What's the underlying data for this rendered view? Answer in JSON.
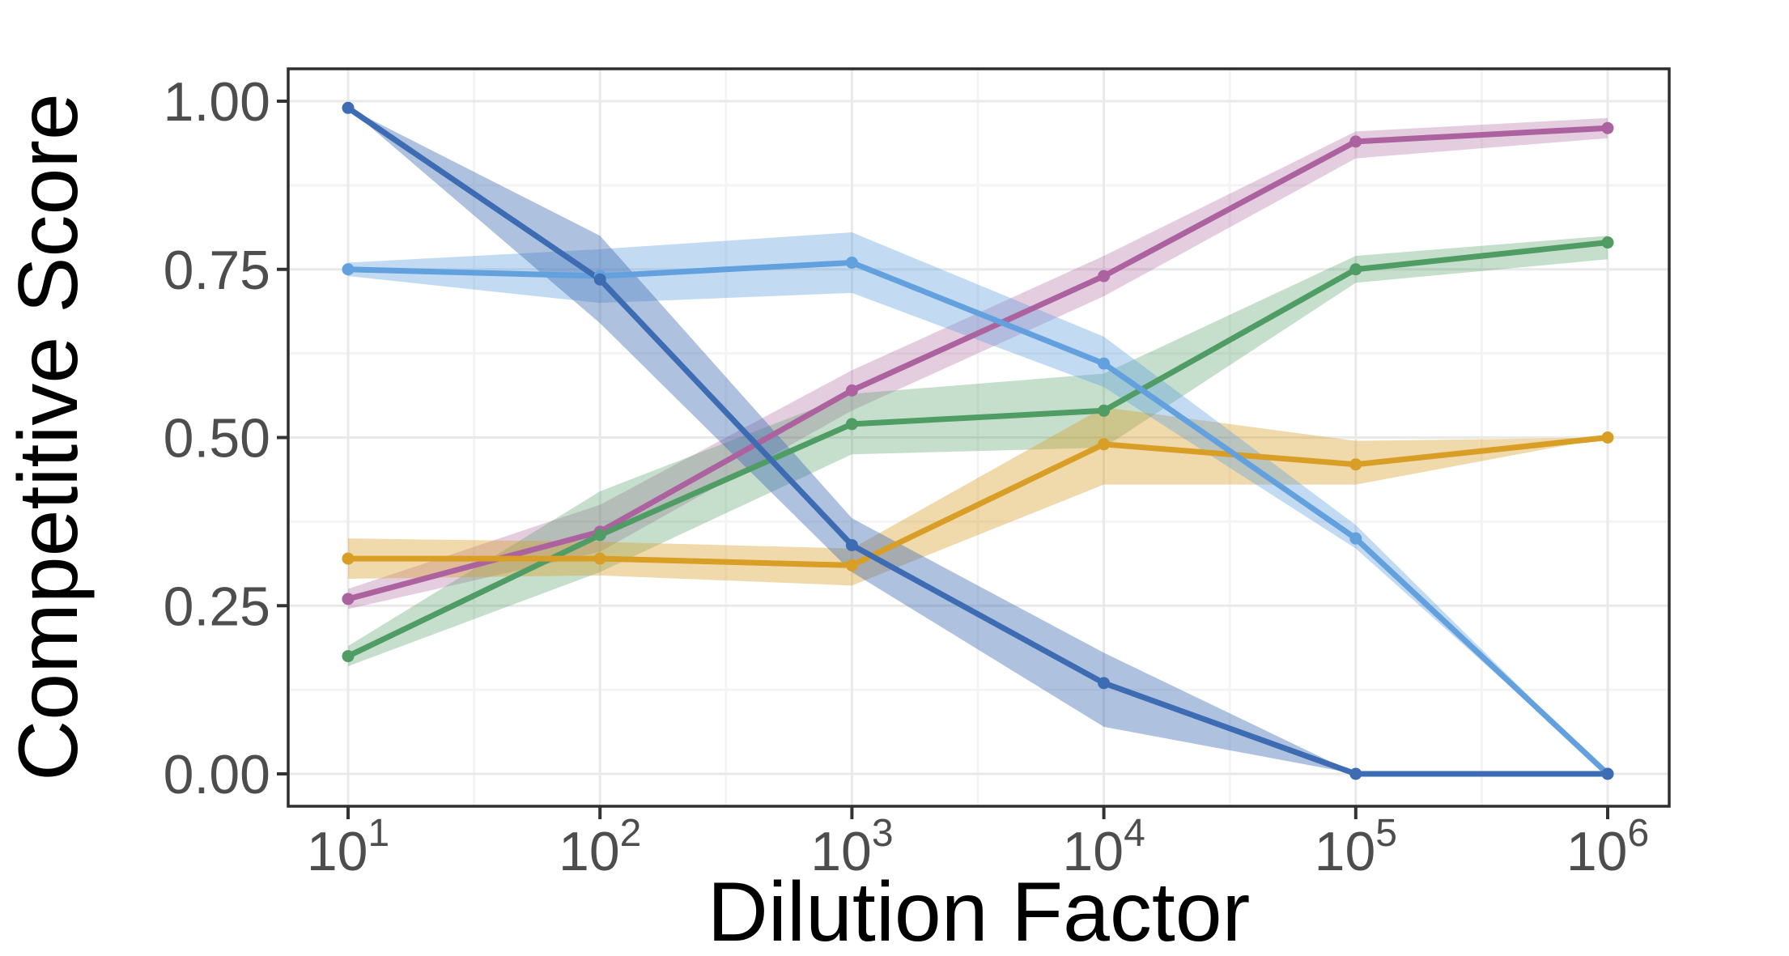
{
  "figure": {
    "background_color": "#ffffff",
    "panel": {
      "background_color": "#ffffff",
      "border_color": "#2e2e2e",
      "grid_major_color": "#e9e9e9",
      "grid_minor_color": "#f4f4f4",
      "tick_color": "#333333",
      "tick_label_color": "#4d4d4d"
    },
    "x_axis": {
      "title": "Dilution Factor",
      "scale": "log10",
      "ticks": [
        {
          "mantissa": "10",
          "exponent": "1"
        },
        {
          "mantissa": "10",
          "exponent": "2"
        },
        {
          "mantissa": "10",
          "exponent": "3"
        },
        {
          "mantissa": "10",
          "exponent": "4"
        },
        {
          "mantissa": "10",
          "exponent": "5"
        },
        {
          "mantissa": "10",
          "exponent": "6"
        }
      ]
    },
    "y_axis": {
      "title": "Competitive Score",
      "ticks": [
        {
          "label": "1.00",
          "value": 1.0
        },
        {
          "label": "0.75",
          "value": 0.75
        },
        {
          "label": "0.50",
          "value": 0.5
        },
        {
          "label": "0.25",
          "value": 0.25
        },
        {
          "label": "0.00",
          "value": 0.0
        }
      ],
      "minor_values": [
        0.875,
        0.625,
        0.375,
        0.125
      ]
    }
  },
  "chart_data": {
    "type": "line",
    "title": "",
    "xlabel": "Dilution Factor",
    "ylabel": "Competitive Score",
    "x": [
      10,
      100,
      1000,
      10000,
      100000,
      1000000
    ],
    "x_log10": [
      1,
      2,
      3,
      4,
      5,
      6
    ],
    "ylim": [
      0,
      1
    ],
    "xscale": "log10",
    "grid": true,
    "legend": "none",
    "markers": true,
    "ribbons": "confidence bands around each line",
    "series": [
      {
        "name": "magenta",
        "color": "#ad62a0",
        "ribbon_opacity": 0.32,
        "values": [
          0.26,
          0.36,
          0.57,
          0.74,
          0.94,
          0.96
        ],
        "lower": [
          0.245,
          0.33,
          0.54,
          0.71,
          0.915,
          0.945
        ],
        "upper": [
          0.275,
          0.4,
          0.6,
          0.77,
          0.955,
          0.975
        ]
      },
      {
        "name": "green",
        "color": "#4f9d64",
        "ribbon_opacity": 0.32,
        "values": [
          0.175,
          0.355,
          0.52,
          0.54,
          0.75,
          0.79
        ],
        "lower": [
          0.16,
          0.3,
          0.475,
          0.485,
          0.73,
          0.765
        ],
        "upper": [
          0.19,
          0.42,
          0.565,
          0.595,
          0.77,
          0.8
        ]
      },
      {
        "name": "gold",
        "color": "#d89e26",
        "ribbon_opacity": 0.38,
        "values": [
          0.32,
          0.32,
          0.31,
          0.49,
          0.46,
          0.5
        ],
        "lower": [
          0.29,
          0.295,
          0.28,
          0.43,
          0.43,
          0.5
        ],
        "upper": [
          0.35,
          0.345,
          0.335,
          0.545,
          0.495,
          0.5
        ]
      },
      {
        "name": "light-blue",
        "color": "#62a0de",
        "ribbon_opacity": 0.38,
        "values": [
          0.75,
          0.74,
          0.76,
          0.61,
          0.35,
          0.0
        ],
        "lower": [
          0.74,
          0.7,
          0.715,
          0.575,
          0.335,
          0.0
        ],
        "upper": [
          0.76,
          0.78,
          0.805,
          0.65,
          0.37,
          0.0
        ]
      },
      {
        "name": "dark-blue",
        "color": "#3d6cb3",
        "ribbon_opacity": 0.42,
        "values": [
          0.99,
          0.735,
          0.34,
          0.135,
          0.0,
          0.0
        ],
        "lower": [
          0.99,
          0.67,
          0.3,
          0.07,
          0.0,
          0.0
        ],
        "upper": [
          0.99,
          0.8,
          0.38,
          0.18,
          0.0,
          0.0
        ]
      }
    ]
  }
}
